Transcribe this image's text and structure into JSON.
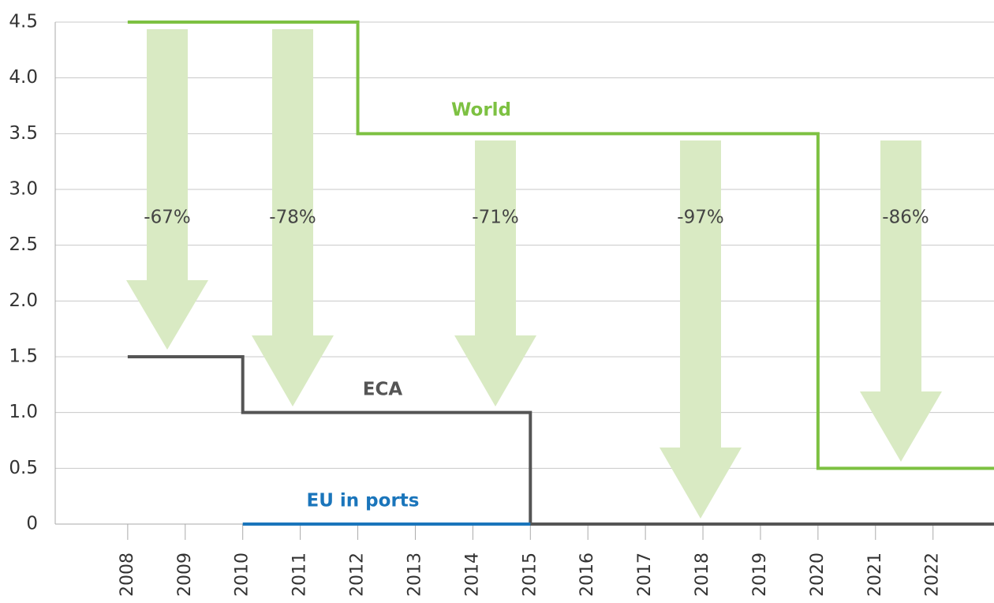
{
  "chart_data": {
    "type": "step",
    "xlim": [
      2006.74,
      2023.06
    ],
    "xticks": [
      2008,
      2009,
      2010,
      2011,
      2012,
      2013,
      2014,
      2015,
      2016,
      2017,
      2018,
      2019,
      2020,
      2021,
      2022
    ],
    "ylim": [
      0,
      4.5
    ],
    "yticks": [
      0,
      0.5,
      {
        "value": 1,
        "label": "1.0"
      },
      1.5,
      {
        "value": 2,
        "label": "2.0"
      },
      2.5,
      {
        "value": 3,
        "label": "3.0"
      },
      3.5,
      {
        "value": 4,
        "label": "4.0"
      },
      4.5
    ],
    "grid": true,
    "series": [
      {
        "name": "World",
        "color": "#7dc142",
        "x": [
          2008,
          2012,
          2020,
          2023.06
        ],
        "values": [
          4.5,
          3.5,
          0.5,
          0.5
        ]
      },
      {
        "name": "ECA",
        "color": "#555555",
        "x": [
          2008,
          2010,
          2015,
          2023.06
        ],
        "values": [
          1.5,
          1.0,
          0,
          0
        ]
      },
      {
        "name": "EU in ports",
        "color": "#1a75bb",
        "x": [
          2010,
          2015
        ],
        "values": [
          0,
          0
        ]
      }
    ],
    "annotations": [
      "-67%",
      "-78%",
      "-71%",
      "-97%",
      "-86%"
    ],
    "arrow_color": "#d9eac3"
  }
}
